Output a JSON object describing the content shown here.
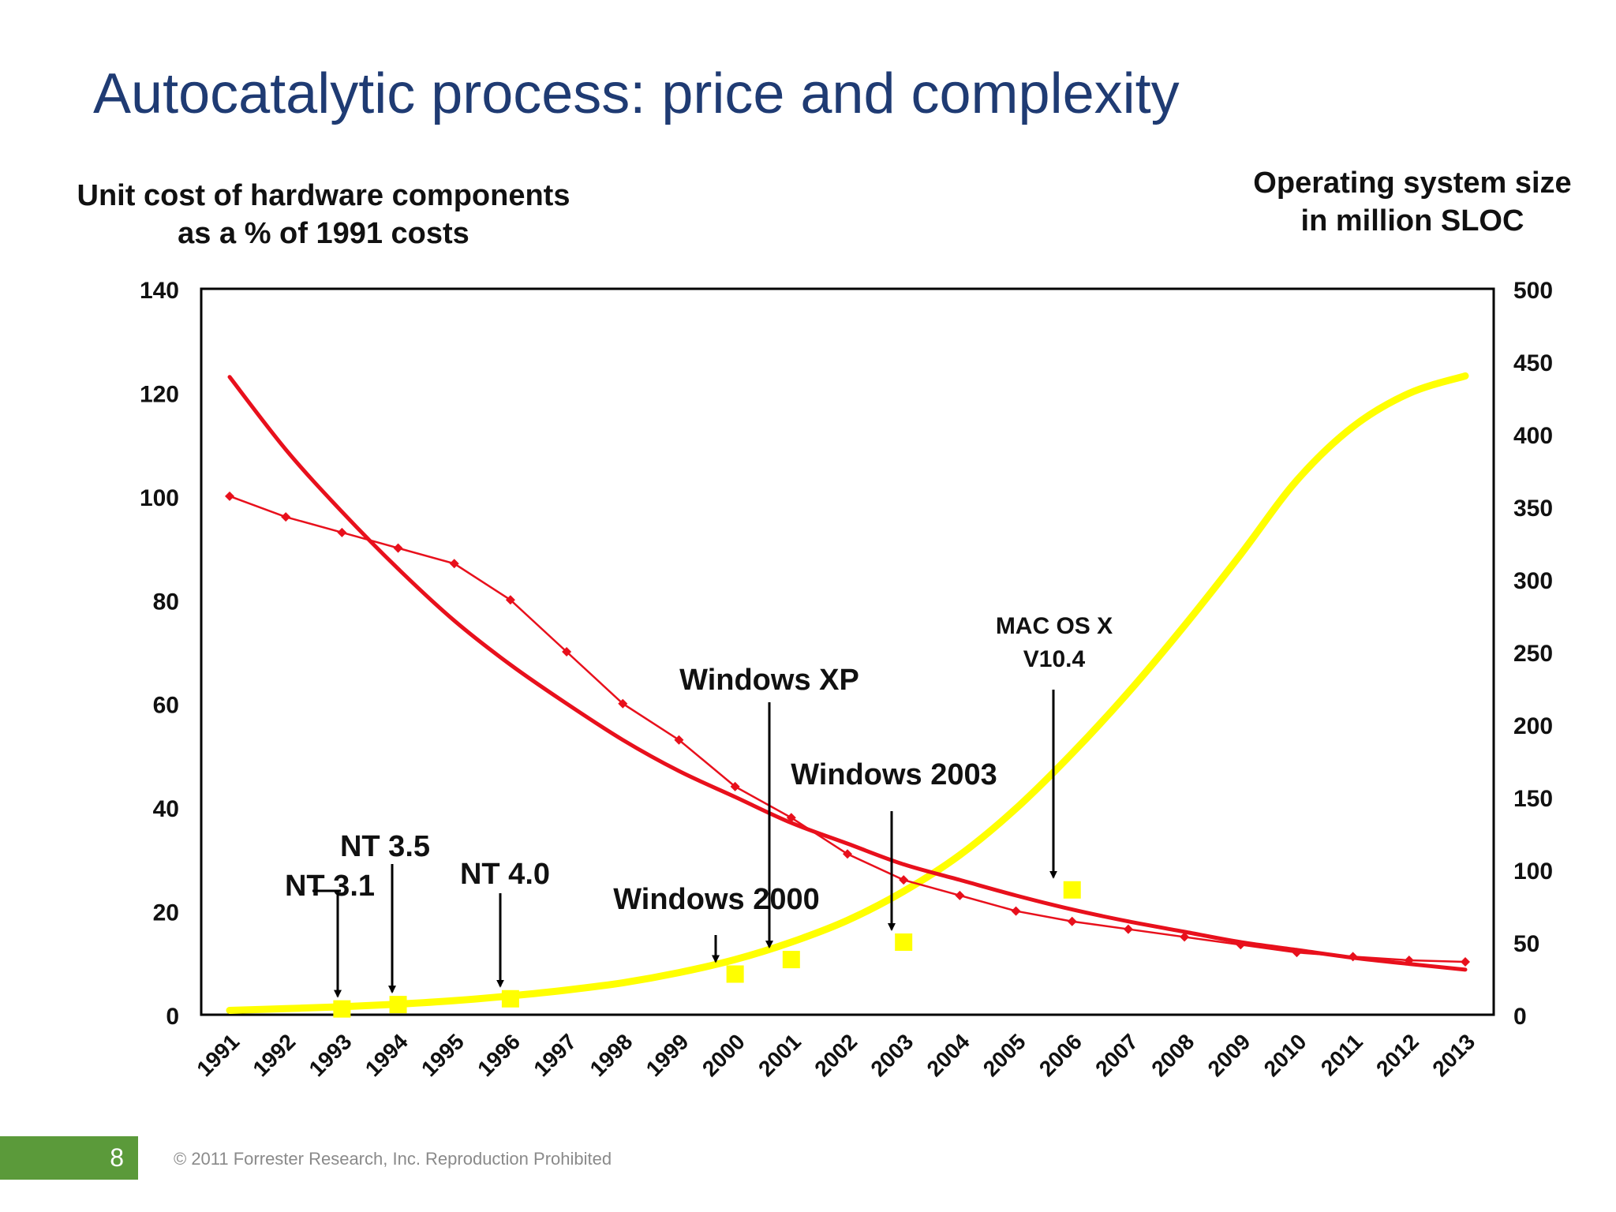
{
  "slide": {
    "title": "Autocatalytic process: price and complexity",
    "page_number": "8",
    "copyright": "© 2011 Forrester Research, Inc. Reproduction Prohibited"
  },
  "colors": {
    "title": "#1f3b73",
    "cost": "#e8101c",
    "os": "#ffff00",
    "footer_badge": "#5b9a3a"
  },
  "chart_data": {
    "type": "line",
    "left_axis": {
      "title_line1": "Unit cost of hardware components",
      "title_line2": "as a % of 1991 costs",
      "ylim": [
        0,
        140
      ],
      "ticks": [
        "0",
        "20",
        "40",
        "60",
        "80",
        "100",
        "120",
        "140"
      ]
    },
    "right_axis": {
      "title_line1": "Operating system size",
      "title_line2": "in million SLOC",
      "ylim": [
        0,
        500
      ],
      "ticks": [
        "0",
        "50",
        "100",
        "150",
        "200",
        "250",
        "300",
        "350",
        "400",
        "450",
        "500"
      ]
    },
    "categories": [
      "1991",
      "1992",
      "1993",
      "1994",
      "1995",
      "1996",
      "1997",
      "1998",
      "1999",
      "2000",
      "2001",
      "2002",
      "2003",
      "2004",
      "2005",
      "2006",
      "2007",
      "2008",
      "2009",
      "2010",
      "2011",
      "2012",
      "2013"
    ],
    "cost_actual": [
      100,
      96,
      93,
      90,
      87,
      80,
      70,
      60,
      53,
      44,
      38,
      31,
      26,
      23,
      20,
      18,
      16.5,
      15,
      13.5,
      12,
      11.2,
      10.5,
      10.2
    ],
    "cost_trend": [
      123,
      109,
      97,
      86,
      76,
      67.5,
      60,
      53,
      47,
      42,
      37,
      33,
      29,
      26,
      23,
      20.3,
      18,
      16,
      14,
      12.5,
      11,
      9.8,
      8.7
    ],
    "os_trend": [
      3,
      4.2,
      5.5,
      7.3,
      9.7,
      13,
      17,
      22,
      29,
      38,
      50,
      65,
      85,
      110,
      142,
      180,
      222,
      268,
      317,
      368,
      405,
      428,
      440
    ],
    "os_releases": [
      {
        "label": "NT 3.1",
        "year": "1993",
        "sloc": 4
      },
      {
        "label": "NT 3.5",
        "year": "1994",
        "sloc": 7
      },
      {
        "label": "NT 4.0",
        "year": "1996",
        "sloc": 11
      },
      {
        "label": "Windows 2000",
        "year": "2000",
        "sloc": 28
      },
      {
        "label": "Windows XP",
        "year": "2001",
        "sloc": 38
      },
      {
        "label": "Windows 2003",
        "year": "2003",
        "sloc": 50
      },
      {
        "label": "MAC OS X V10.4",
        "year": "2006",
        "sloc": 86
      }
    ],
    "annotations": [
      {
        "line1": "NT 3.1",
        "line2": ""
      },
      {
        "line1": "NT 3.5",
        "line2": ""
      },
      {
        "line1": "NT 4.0",
        "line2": ""
      },
      {
        "line1": "Windows 2000",
        "line2": ""
      },
      {
        "line1": "Windows XP",
        "line2": ""
      },
      {
        "line1": "Windows 2003",
        "line2": ""
      },
      {
        "line1": "MAC OS X",
        "line2": "V10.4"
      }
    ],
    "grid": false,
    "legend": "none"
  }
}
